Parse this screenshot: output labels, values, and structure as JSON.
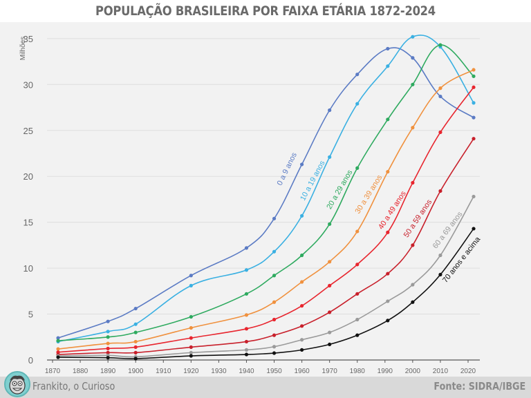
{
  "header": {
    "title": "POPULAÇÃO BRASILEIRA POR FAIXA ETÁRIA 1872-2024"
  },
  "footer": {
    "brand": "Frankito, o Curioso",
    "source": "Fonte: SIDRA/IBGE",
    "avatar_icon": "cartoon-face-icon"
  },
  "chart_data": {
    "type": "line",
    "title": "POPULAÇÃO BRASILEIRA POR FAIXA ETÁRIA 1872-2024",
    "xlabel": "",
    "ylabel": "Milhões",
    "xlim": [
      1870,
      2025
    ],
    "ylim": [
      0,
      35
    ],
    "xticks": [
      1870,
      1880,
      1890,
      1900,
      1910,
      1920,
      1930,
      1940,
      1950,
      1960,
      1970,
      1980,
      1990,
      2000,
      2010,
      2020
    ],
    "yticks": [
      0,
      5,
      10,
      15,
      20,
      25,
      30,
      35
    ],
    "grid": "horizontal",
    "legend": "inline labels along lines",
    "x": [
      1872,
      1890,
      1900,
      1920,
      1940,
      1950,
      1960,
      1970,
      1980,
      1991,
      2000,
      2010,
      2022
    ],
    "series": [
      {
        "name": "0 a 9 anos",
        "color": "#5b7bc4",
        "values": [
          2.4,
          4.2,
          5.6,
          9.2,
          12.2,
          15.4,
          21.3,
          27.2,
          31.1,
          33.9,
          32.9,
          28.7,
          26.4
        ]
      },
      {
        "name": "10 a 19 anos",
        "color": "#3ab0e2",
        "values": [
          2.0,
          3.1,
          3.9,
          8.1,
          9.8,
          11.8,
          15.7,
          22.1,
          27.9,
          32.0,
          35.2,
          34.1,
          28.0
        ]
      },
      {
        "name": "20 a 29 anos",
        "color": "#2eaa5f",
        "values": [
          2.1,
          2.5,
          3.0,
          4.7,
          7.2,
          9.2,
          11.4,
          14.8,
          20.9,
          26.2,
          30.0,
          34.3,
          30.9
        ]
      },
      {
        "name": "30 a 39 anos",
        "color": "#f0913e",
        "values": [
          1.2,
          1.8,
          2.0,
          3.5,
          4.9,
          6.3,
          8.5,
          10.7,
          14.0,
          20.5,
          25.3,
          29.6,
          31.6
        ]
      },
      {
        "name": "40 a 49 anos",
        "color": "#e8252e",
        "values": [
          0.85,
          1.25,
          1.4,
          2.4,
          3.4,
          4.4,
          5.9,
          8.1,
          10.4,
          13.9,
          19.3,
          24.8,
          29.7
        ]
      },
      {
        "name": "50 a 59 anos",
        "color": "#c8202b",
        "values": [
          0.6,
          0.8,
          0.8,
          1.4,
          2.0,
          2.7,
          3.7,
          5.2,
          7.2,
          9.4,
          12.5,
          18.4,
          24.1
        ]
      },
      {
        "name": "60 a 69 anos",
        "color": "#9a9a9a",
        "values": [
          0.45,
          0.5,
          0.35,
          0.8,
          1.1,
          1.45,
          2.2,
          3.0,
          4.4,
          6.4,
          8.2,
          11.4,
          17.8
        ]
      },
      {
        "name": "70 anos e acima",
        "color": "#111111",
        "values": [
          0.3,
          0.25,
          0.15,
          0.45,
          0.6,
          0.75,
          1.1,
          1.7,
          2.7,
          4.3,
          6.3,
          9.3,
          14.3
        ]
      }
    ]
  }
}
